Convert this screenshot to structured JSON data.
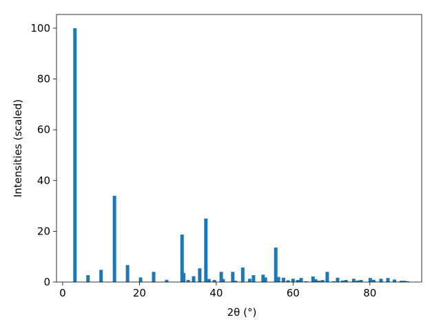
{
  "chart_data": {
    "type": "bar",
    "xlabel": "2θ (°)",
    "ylabel": "Intensities (scaled)",
    "color": "#1f77b4",
    "x": [
      3.2,
      6.6,
      10.0,
      13.5,
      16.9,
      20.3,
      23.7,
      27.1,
      31.1,
      31.5,
      32.7,
      34.1,
      35.7,
      37.3,
      38.1,
      39.5,
      41.3,
      41.8,
      44.3,
      45.0,
      46.9,
      48.7,
      49.7,
      52.2,
      52.8,
      55.5,
      56.2,
      57.5,
      58.7,
      60.0,
      61.2,
      62.1,
      63.4,
      65.2,
      65.9,
      66.8,
      67.7,
      68.9,
      70.6,
      71.6,
      72.9,
      73.8,
      75.8,
      76.8,
      77.7,
      80.1,
      81.0,
      82.9,
      84.7,
      86.4,
      88.2,
      89.0,
      89.8
    ],
    "values": [
      100,
      2.7,
      4.8,
      34,
      6.7,
      1.8,
      4.0,
      0.9,
      18.7,
      3.6,
      0.8,
      2.3,
      5.4,
      25,
      1.2,
      0.8,
      4.0,
      1.2,
      4.0,
      0.5,
      5.7,
      1.3,
      2.7,
      2.9,
      1.8,
      13.6,
      2.0,
      1.7,
      0.7,
      1.3,
      0.8,
      1.6,
      0.3,
      2.2,
      1.1,
      0.5,
      0.8,
      4.0,
      0.3,
      1.7,
      0.6,
      0.8,
      1.3,
      0.6,
      0.8,
      1.6,
      0.9,
      1.3,
      1.6,
      1.0,
      0.5,
      0.5,
      0.3
    ],
    "xlim": [
      -1.6,
      93.5
    ],
    "xticks": [
      0,
      20,
      40,
      60,
      80
    ],
    "ylim": [
      0,
      105.4
    ],
    "yticks": [
      0,
      20,
      40,
      60,
      80,
      100
    ]
  }
}
